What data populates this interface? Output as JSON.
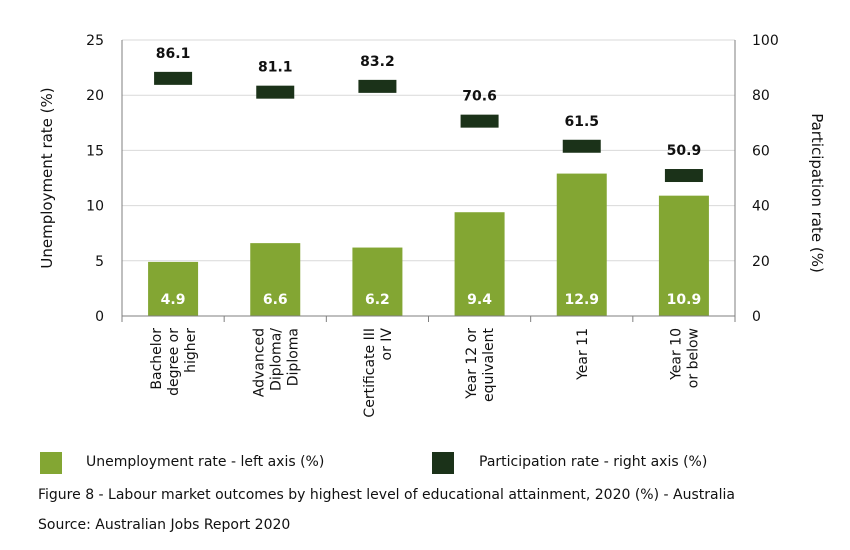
{
  "chart_data": {
    "type": "bar",
    "categories": [
      [
        "Bachelor",
        "degree or",
        "higher"
      ],
      [
        "Advanced",
        "Diploma/",
        "Diploma"
      ],
      [
        "Certificate III",
        "or IV"
      ],
      [
        "Year 12 or",
        "equivalent"
      ],
      [
        "Year 11"
      ],
      [
        "Year 10",
        "or below"
      ]
    ],
    "series": [
      {
        "name": "Unemployment rate - left axis (%)",
        "axis": "left",
        "kind": "bar",
        "values": [
          4.9,
          6.6,
          6.2,
          9.4,
          12.9,
          10.9
        ],
        "labels": [
          "4.9",
          "6.6",
          "6.2",
          "9.4",
          "12.9",
          "10.9"
        ]
      },
      {
        "name": "Participation rate - right axis (%)",
        "axis": "right",
        "kind": "marker",
        "values": [
          86.1,
          81.1,
          83.2,
          70.6,
          61.5,
          50.9
        ],
        "labels": [
          "86.1",
          "81.1",
          "83.2",
          "70.6",
          "61.5",
          "50.9"
        ]
      }
    ],
    "ylabel": "Unemployment rate (%)",
    "y2label": "Participation rate (%)",
    "ylim": [
      0,
      25
    ],
    "y2lim": [
      0,
      100
    ],
    "yticks": [
      "0",
      "5",
      "10",
      "15",
      "20",
      "25"
    ],
    "y2ticks": [
      "0",
      "20",
      "40",
      "60",
      "80",
      "100"
    ],
    "grid": true,
    "legend_position": "bottom",
    "colors": {
      "bar": "#83a633",
      "marker": "#1b3219",
      "grid": "#d9d9d9",
      "axis": "#7f7f7f"
    }
  },
  "legend": {
    "unemployment": "Unemployment rate - left axis (%)",
    "participation": "Participation rate - right axis (%)"
  },
  "caption": "Figure 8 - Labour market outcomes by highest level of educational attainment, 2020 (%) - Australia",
  "source": "Source: Australian Jobs Report 2020"
}
